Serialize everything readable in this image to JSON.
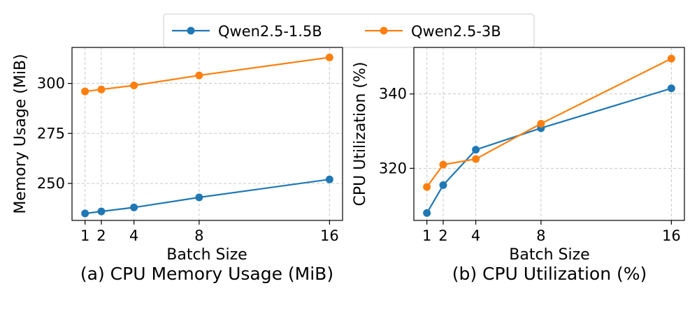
{
  "legend": {
    "items": [
      {
        "name": "Qwen2.5-1.5B",
        "color": "#1f77b4"
      },
      {
        "name": "Qwen2.5-3B",
        "color": "#ff7f0e"
      }
    ]
  },
  "chart_data": [
    {
      "type": "line",
      "caption": "(a) CPU Memory Usage (MiB)",
      "xlabel": "Batch Size",
      "ylabel": "Memory Usage (MiB)",
      "x": [
        1,
        2,
        4,
        8,
        16
      ],
      "x_ticks": [
        1,
        2,
        4,
        8,
        16
      ],
      "y_ticks": [
        250,
        275,
        300
      ],
      "xlim": [
        0.2,
        16.8
      ],
      "ylim": [
        231.5,
        318
      ],
      "grid": true,
      "series": [
        {
          "name": "Qwen2.5-1.5B",
          "color": "#1f77b4",
          "values": [
            235,
            236,
            238,
            243,
            252
          ]
        },
        {
          "name": "Qwen2.5-3B",
          "color": "#ff7f0e",
          "values": [
            296,
            297,
            299,
            304,
            313
          ]
        }
      ]
    },
    {
      "type": "line",
      "caption": "(b) CPU Utilization (%)",
      "xlabel": "Batch Size",
      "ylabel": "CPU Utilization (%)",
      "x": [
        1,
        2,
        4,
        8,
        16
      ],
      "x_ticks": [
        1,
        2,
        4,
        8,
        16
      ],
      "y_ticks": [
        320,
        340
      ],
      "xlim": [
        0.2,
        16.8
      ],
      "ylim": [
        306,
        352.5
      ],
      "grid": true,
      "series": [
        {
          "name": "Qwen2.5-1.5B",
          "color": "#1f77b4",
          "values": [
            308,
            315.5,
            325,
            330.8,
            341.5
          ]
        },
        {
          "name": "Qwen2.5-3B",
          "color": "#ff7f0e",
          "values": [
            315,
            321,
            322.5,
            332,
            349.5
          ]
        }
      ]
    }
  ]
}
